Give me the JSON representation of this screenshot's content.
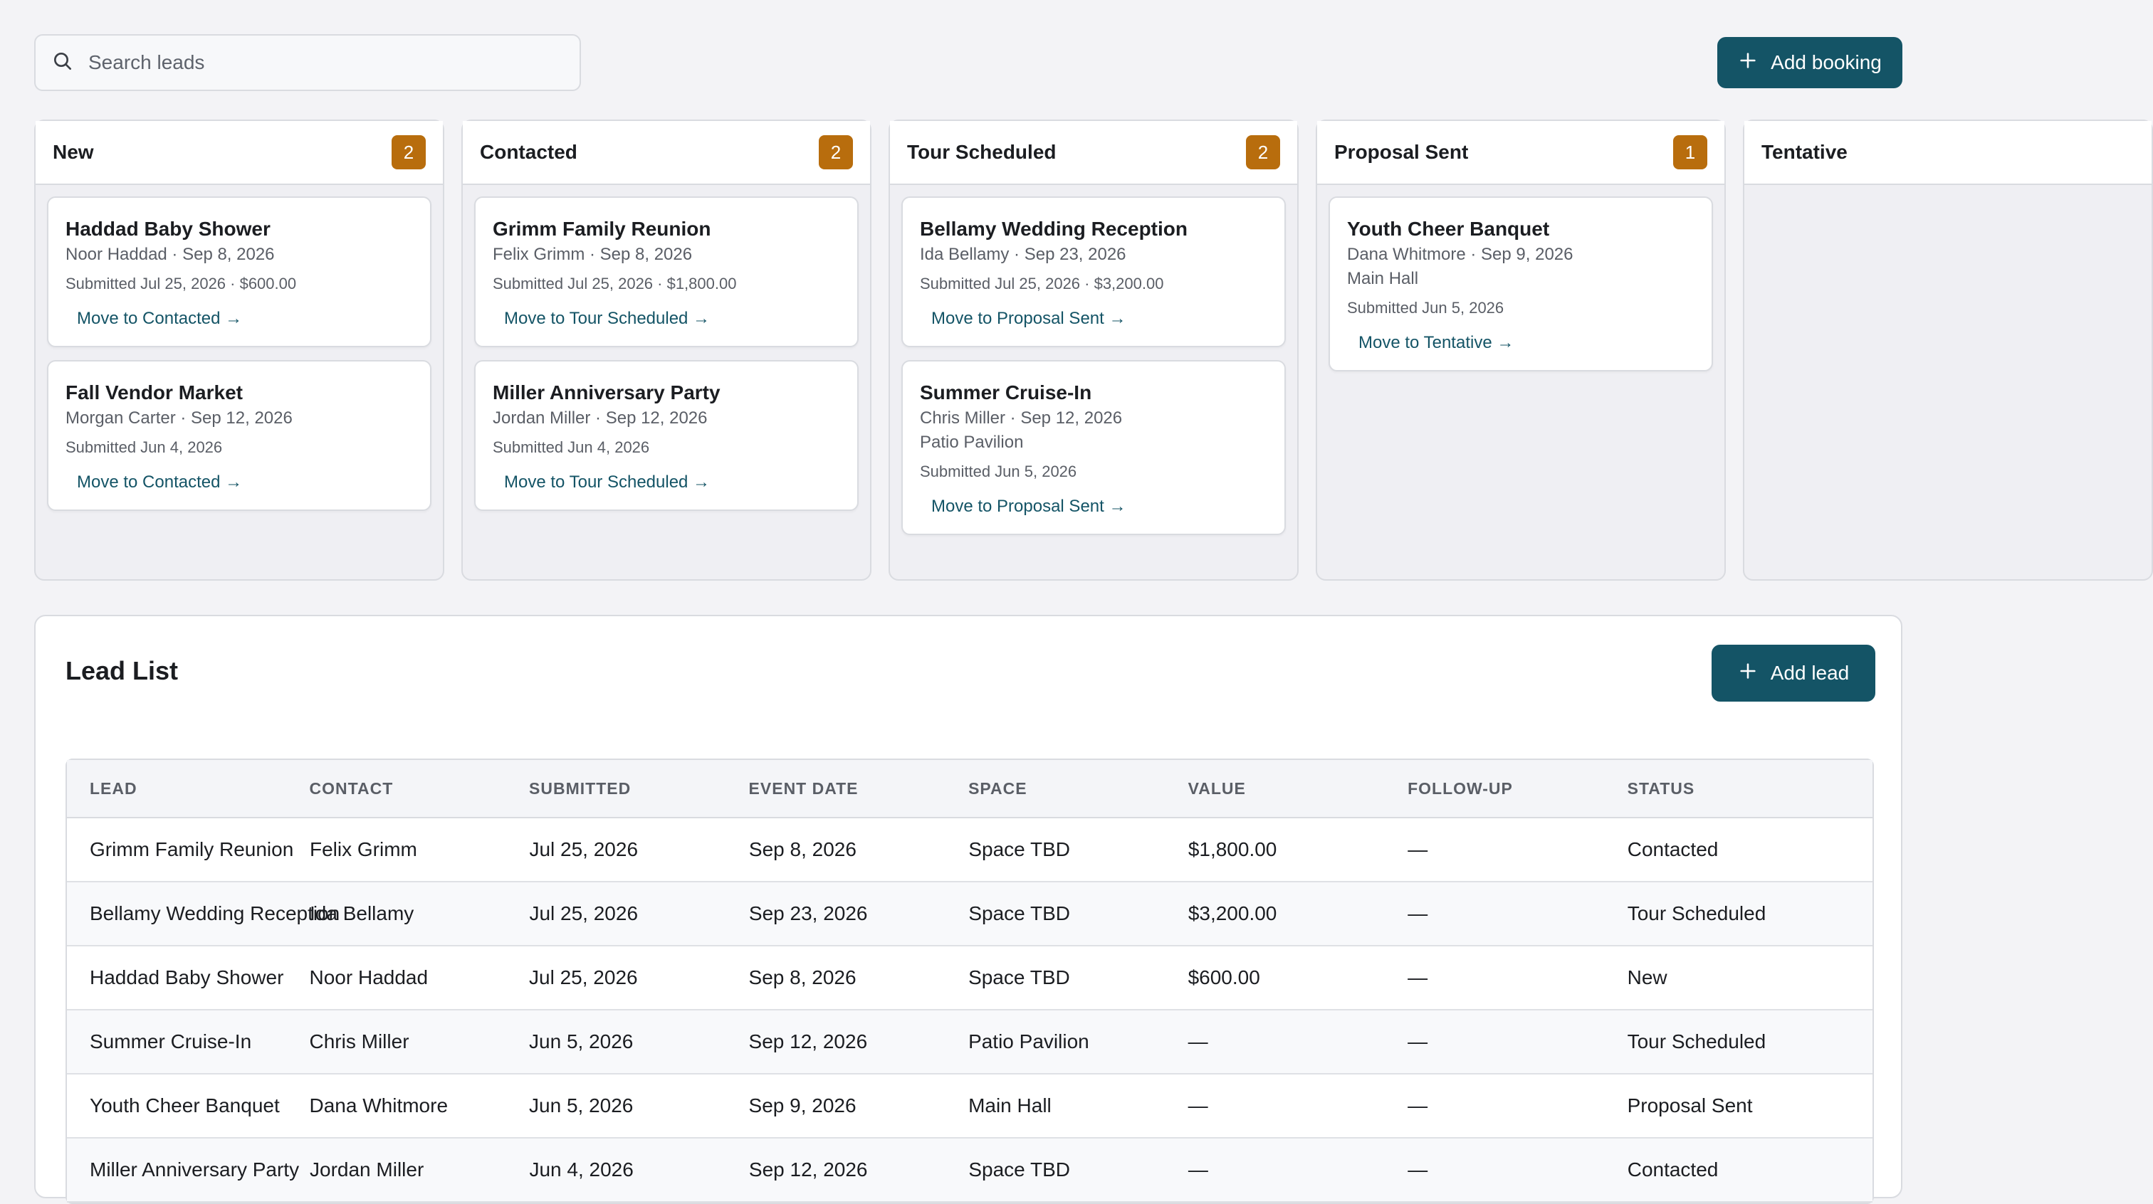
{
  "search": {
    "placeholder": "Search leads",
    "value": ""
  },
  "toolbar": {
    "add_booking_label": "Add booking"
  },
  "board": {
    "columns": [
      {
        "title": "New",
        "count": "2",
        "cards": [
          {
            "title": "Haddad Baby Shower",
            "line": "Noor Haddad · Sep 8, 2026",
            "space": "",
            "submitted": "Submitted Jul 25, 2026 · $600.00",
            "move": "Move to Contacted →"
          },
          {
            "title": "Fall Vendor Market",
            "line": "Morgan Carter · Sep 12, 2026",
            "space": "",
            "submitted": "Submitted Jun 4, 2026",
            "move": "Move to Contacted →"
          }
        ]
      },
      {
        "title": "Contacted",
        "count": "2",
        "cards": [
          {
            "title": "Grimm Family Reunion",
            "line": "Felix Grimm · Sep 8, 2026",
            "space": "",
            "submitted": "Submitted Jul 25, 2026 · $1,800.00",
            "move": "Move to Tour Scheduled →"
          },
          {
            "title": "Miller Anniversary Party",
            "line": "Jordan Miller · Sep 12, 2026",
            "space": "",
            "submitted": "Submitted Jun 4, 2026",
            "move": "Move to Tour Scheduled →"
          }
        ]
      },
      {
        "title": "Tour Scheduled",
        "count": "2",
        "cards": [
          {
            "title": "Bellamy Wedding Reception",
            "line": "Ida Bellamy · Sep 23, 2026",
            "space": "",
            "submitted": "Submitted Jul 25, 2026 · $3,200.00",
            "move": "Move to Proposal Sent →"
          },
          {
            "title": "Summer Cruise-In",
            "line": "Chris Miller · Sep 12, 2026",
            "space": "Patio Pavilion",
            "submitted": "Submitted Jun 5, 2026",
            "move": "Move to Proposal Sent →"
          }
        ]
      },
      {
        "title": "Proposal Sent",
        "count": "1",
        "cards": [
          {
            "title": "Youth Cheer Banquet",
            "line": "Dana Whitmore · Sep 9, 2026",
            "space": "Main Hall",
            "submitted": "Submitted Jun 5, 2026",
            "move": "Move to Tentative →"
          }
        ]
      },
      {
        "title": "Tentative",
        "count": "",
        "cards": []
      }
    ]
  },
  "lead_list": {
    "title": "Lead List",
    "add_lead_label": "Add lead",
    "columns": [
      "LEAD",
      "CONTACT",
      "SUBMITTED",
      "EVENT DATE",
      "SPACE",
      "VALUE",
      "FOLLOW-UP",
      "STATUS"
    ],
    "rows": [
      [
        "Grimm Family Reunion",
        "Felix Grimm",
        "Jul 25, 2026",
        "Sep 8, 2026",
        "Space TBD",
        "$1,800.00",
        "—",
        "Contacted"
      ],
      [
        "Bellamy Wedding Reception",
        "Ida Bellamy",
        "Jul 25, 2026",
        "Sep 23, 2026",
        "Space TBD",
        "$3,200.00",
        "—",
        "Tour Scheduled"
      ],
      [
        "Haddad Baby Shower",
        "Noor Haddad",
        "Jul 25, 2026",
        "Sep 8, 2026",
        "Space TBD",
        "$600.00",
        "—",
        "New"
      ],
      [
        "Summer Cruise-In",
        "Chris Miller",
        "Jun 5, 2026",
        "Sep 12, 2026",
        "Patio Pavilion",
        "—",
        "—",
        "Tour Scheduled"
      ],
      [
        "Youth Cheer Banquet",
        "Dana Whitmore",
        "Jun 5, 2026",
        "Sep 9, 2026",
        "Main Hall",
        "—",
        "—",
        "Proposal Sent"
      ],
      [
        "Miller Anniversary Party",
        "Jordan Miller",
        "Jun 4, 2026",
        "Sep 12, 2026",
        "Space TBD",
        "—",
        "—",
        "Contacted"
      ]
    ]
  },
  "colors": {
    "primary": "#145466",
    "count_badge": "#b86d0d",
    "background": "#f3f3f6",
    "border": "#d9dbe0"
  },
  "icons": {
    "search": "search-icon",
    "add": "plus-icon"
  }
}
